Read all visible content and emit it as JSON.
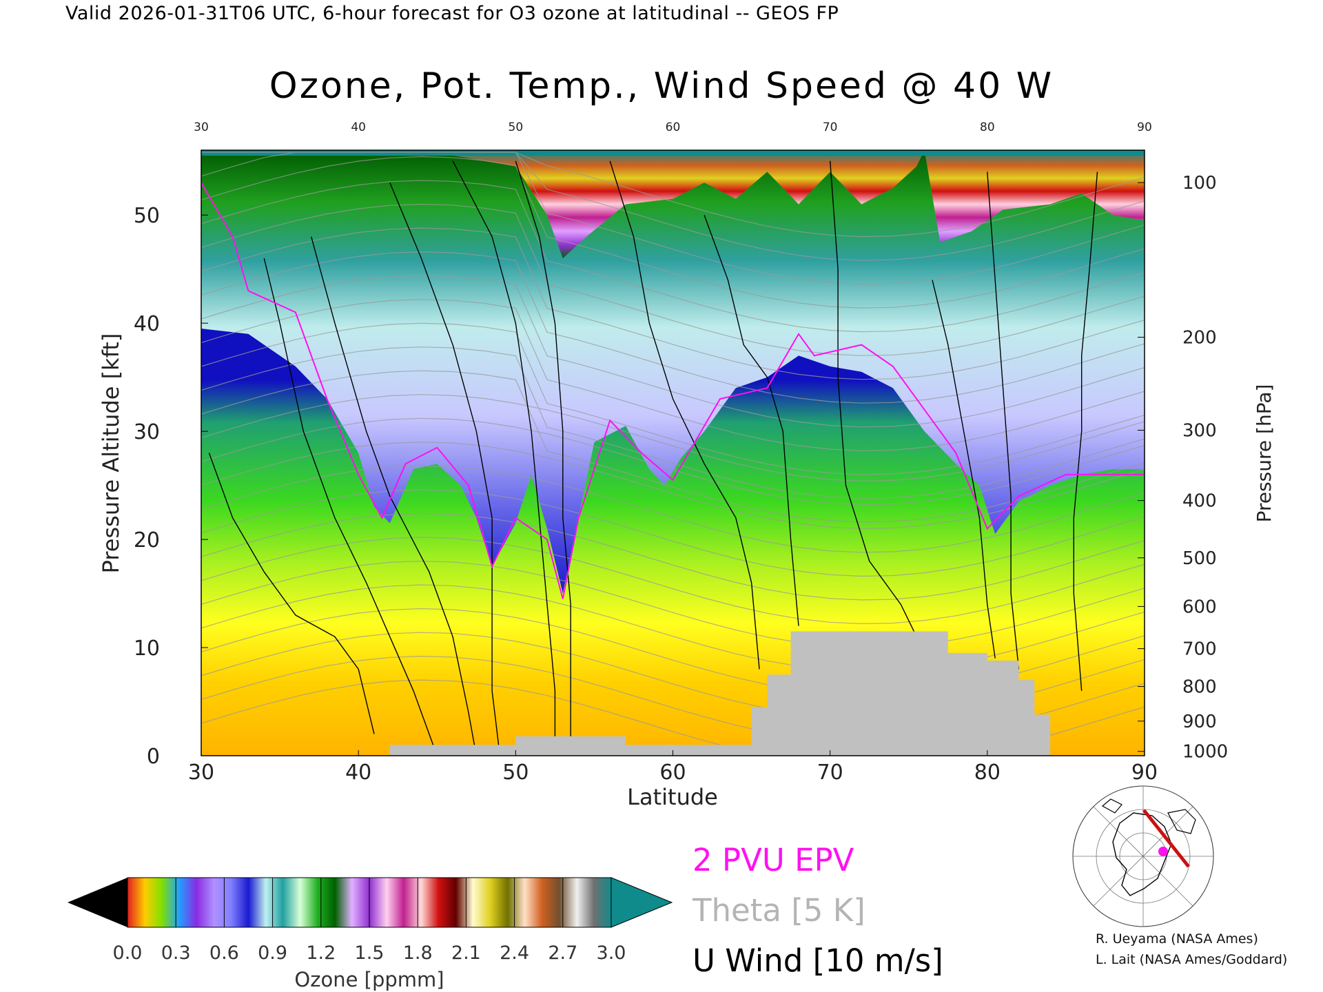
{
  "header": {
    "valid_line": "Valid 2026-01-31T06 UTC, 6-hour forecast for O3 ozone at latitudinal -- GEOS FP"
  },
  "chart_data": {
    "type": "heatmap",
    "title": "Ozone, Pot. Temp., Wind Speed @ 40 W",
    "xlabel": "Latitude",
    "ylabel": "Pressure Altitude [kft]",
    "y2label": "Pressure [hPa]",
    "xlim": [
      30,
      90
    ],
    "ylim": [
      0,
      56
    ],
    "x_ticks": [
      30,
      40,
      50,
      60,
      70,
      80,
      90
    ],
    "top_x_ticks": [
      30,
      40,
      50,
      60,
      70,
      80,
      90
    ],
    "y_ticks": [
      0,
      10,
      20,
      30,
      40,
      50
    ],
    "pressure_ticks": [
      {
        "label": "100",
        "kft": 53.0
      },
      {
        "label": "200",
        "kft": 38.7
      },
      {
        "label": "300",
        "kft": 30.1
      },
      {
        "label": "400",
        "kft": 23.6
      },
      {
        "label": "500",
        "kft": 18.3
      },
      {
        "label": "600",
        "kft": 13.8
      },
      {
        "label": "700",
        "kft": 9.9
      },
      {
        "label": "800",
        "kft": 6.4
      },
      {
        "label": "900",
        "kft": 3.2
      },
      {
        "label": "1000",
        "kft": 0.4
      }
    ],
    "tropopause_kft": [
      [
        30,
        39.5
      ],
      [
        33,
        39
      ],
      [
        36,
        36
      ],
      [
        38,
        33
      ],
      [
        40,
        28
      ],
      [
        41,
        23
      ],
      [
        42,
        21.5
      ],
      [
        43.5,
        26.5
      ],
      [
        45,
        27
      ],
      [
        46.5,
        25
      ],
      [
        47.5,
        22
      ],
      [
        48.5,
        17.5
      ],
      [
        50,
        21.5
      ],
      [
        51,
        26
      ],
      [
        52,
        21
      ],
      [
        53,
        15
      ],
      [
        54,
        22
      ],
      [
        55,
        29
      ],
      [
        57,
        30.5
      ],
      [
        58.5,
        26.5
      ],
      [
        59.5,
        25
      ],
      [
        60.5,
        27.5
      ],
      [
        62,
        30
      ],
      [
        64,
        34
      ],
      [
        66,
        35
      ],
      [
        68,
        37
      ],
      [
        70,
        36
      ],
      [
        72,
        35.5
      ],
      [
        74,
        34
      ],
      [
        76,
        30
      ],
      [
        78,
        27
      ],
      [
        79.5,
        25
      ],
      [
        80.5,
        20.5
      ],
      [
        82,
        23.5
      ],
      [
        84,
        25
      ],
      [
        86,
        26
      ],
      [
        88,
        26.5
      ],
      [
        90,
        26.5
      ]
    ],
    "upper_band_kft": [
      [
        30,
        55.5
      ],
      [
        40,
        55.5
      ],
      [
        46,
        55.5
      ],
      [
        50,
        54.5
      ],
      [
        52,
        50
      ],
      [
        53,
        46
      ],
      [
        54.5,
        48
      ],
      [
        57,
        51
      ],
      [
        60,
        51.5
      ],
      [
        62,
        53
      ],
      [
        64,
        51.5
      ],
      [
        66,
        54
      ],
      [
        68,
        51
      ],
      [
        70,
        54
      ],
      [
        72,
        51
      ],
      [
        74,
        52.5
      ],
      [
        75.5,
        54.5
      ],
      [
        76,
        56
      ],
      [
        77,
        47.5
      ],
      [
        79,
        48.5
      ],
      [
        81,
        50.5
      ],
      [
        84,
        51
      ],
      [
        86,
        52
      ],
      [
        88,
        50
      ],
      [
        90,
        49.5
      ]
    ],
    "terrain_kft": [
      [
        30,
        0
      ],
      [
        42,
        0
      ],
      [
        42,
        1
      ],
      [
        50,
        1
      ],
      [
        50,
        1.8
      ],
      [
        57,
        1.8
      ],
      [
        57,
        1
      ],
      [
        65,
        1
      ],
      [
        65,
        4.5
      ],
      [
        66,
        4.5
      ],
      [
        66,
        7.5
      ],
      [
        67.5,
        7.5
      ],
      [
        67.5,
        11.5
      ],
      [
        77.5,
        11.5
      ],
      [
        77.5,
        9.5
      ],
      [
        80,
        9.5
      ],
      [
        80,
        8.8
      ],
      [
        82,
        8.8
      ],
      [
        82,
        7
      ],
      [
        83,
        7
      ],
      [
        83,
        3.8
      ],
      [
        84,
        3.8
      ],
      [
        84,
        0
      ],
      [
        90,
        0
      ]
    ],
    "epv_2pvu_kft": [
      [
        30,
        53
      ],
      [
        32,
        48
      ],
      [
        33,
        43
      ],
      [
        36,
        41
      ],
      [
        38,
        33
      ],
      [
        40,
        26
      ],
      [
        41.5,
        22
      ],
      [
        43,
        27
      ],
      [
        45,
        28.5
      ],
      [
        47,
        25
      ],
      [
        48.5,
        17.5
      ],
      [
        50,
        22
      ],
      [
        52,
        20
      ],
      [
        53,
        14.5
      ],
      [
        54,
        22
      ],
      [
        56,
        31
      ],
      [
        58,
        28
      ],
      [
        60,
        25.5
      ],
      [
        61,
        28
      ],
      [
        63,
        33
      ],
      [
        66,
        34
      ],
      [
        68,
        39
      ],
      [
        69,
        37
      ],
      [
        72,
        38
      ],
      [
        74,
        36
      ],
      [
        76,
        32
      ],
      [
        78,
        28
      ],
      [
        80,
        21
      ],
      [
        82,
        24
      ],
      [
        85,
        26
      ],
      [
        90,
        26
      ]
    ],
    "wind_contours_kft": [
      [
        [
          30.5,
          28
        ],
        [
          32,
          22
        ],
        [
          34,
          17
        ],
        [
          36,
          13
        ],
        [
          38.5,
          11
        ],
        [
          40,
          8
        ],
        [
          41,
          2
        ]
      ],
      [
        [
          34,
          46
        ],
        [
          35,
          40
        ],
        [
          36.5,
          30
        ],
        [
          38.5,
          22
        ],
        [
          40.5,
          16
        ],
        [
          42,
          11
        ],
        [
          43.5,
          6
        ],
        [
          45,
          0
        ]
      ],
      [
        [
          37,
          48
        ],
        [
          38.5,
          40
        ],
        [
          40.5,
          30
        ],
        [
          42,
          24
        ],
        [
          44.5,
          17
        ],
        [
          46,
          11
        ],
        [
          47,
          4
        ],
        [
          47.5,
          0
        ]
      ],
      [
        [
          42,
          53
        ],
        [
          44,
          46
        ],
        [
          46,
          38
        ],
        [
          47.5,
          30
        ],
        [
          48.5,
          22
        ],
        [
          48.5,
          14
        ],
        [
          48.5,
          6
        ],
        [
          49,
          0
        ]
      ],
      [
        [
          46,
          55
        ],
        [
          48.5,
          48
        ],
        [
          50,
          40
        ],
        [
          51,
          30
        ],
        [
          51.5,
          22
        ],
        [
          52,
          14
        ],
        [
          52.5,
          6
        ],
        [
          52.5,
          0
        ]
      ],
      [
        [
          50,
          55
        ],
        [
          51.5,
          48
        ],
        [
          52.5,
          40
        ],
        [
          53,
          30
        ],
        [
          53,
          22
        ],
        [
          53.5,
          14
        ],
        [
          53.5,
          0
        ]
      ],
      [
        [
          56,
          55
        ],
        [
          57.5,
          48
        ],
        [
          58.5,
          40
        ],
        [
          60,
          33
        ],
        [
          62,
          27
        ],
        [
          64,
          22
        ],
        [
          65,
          16
        ],
        [
          65.5,
          8
        ]
      ],
      [
        [
          62,
          50
        ],
        [
          63.5,
          44
        ],
        [
          64.5,
          38
        ],
        [
          66,
          35
        ],
        [
          67,
          30
        ],
        [
          67.5,
          20
        ],
        [
          68,
          12
        ]
      ],
      [
        [
          70,
          55
        ],
        [
          70.5,
          45
        ],
        [
          70.5,
          35
        ],
        [
          71,
          25
        ],
        [
          72.5,
          18
        ],
        [
          74.5,
          14
        ],
        [
          75.5,
          11
        ]
      ],
      [
        [
          76.5,
          44
        ],
        [
          77.5,
          38
        ],
        [
          78.5,
          30
        ],
        [
          79.5,
          22
        ],
        [
          80,
          14
        ],
        [
          80.5,
          9
        ]
      ],
      [
        [
          80,
          54
        ],
        [
          80.5,
          44
        ],
        [
          81,
          34
        ],
        [
          81.5,
          24
        ],
        [
          81.5,
          15
        ],
        [
          82,
          8
        ]
      ],
      [
        [
          87,
          54
        ],
        [
          86.5,
          45
        ],
        [
          86,
          37
        ],
        [
          86,
          30
        ],
        [
          85.5,
          22
        ],
        [
          85.5,
          15
        ],
        [
          86,
          6
        ]
      ]
    ],
    "colorbar": {
      "label": "Ozone [ppmm]",
      "ticks": [
        0.0,
        0.3,
        0.6,
        0.9,
        1.2,
        1.5,
        1.8,
        2.1,
        2.4,
        2.7,
        3.0
      ],
      "tick_labels": [
        "0.0",
        "0.3",
        "0.6",
        "0.9",
        "1.2",
        "1.5",
        "1.8",
        "2.1",
        "2.4",
        "2.7",
        "3.0"
      ],
      "range": [
        0.0,
        3.0
      ],
      "low_color": "#000000",
      "high_color": "#108b8b",
      "stops": [
        "#e02020",
        "#ffcc00",
        "#80e000",
        "#20a0ff",
        "#8a2be2",
        "#b090ff",
        "#8080ff",
        "#1a1ad0",
        "#c0f0f0",
        "#20a0a0",
        "#d8ffd8",
        "#20b020",
        "#006000",
        "#e0b0ff",
        "#9030d0",
        "#ffd0f0",
        "#c02090",
        "#ffd8d8",
        "#d01010",
        "#600000",
        "#fffbd0",
        "#e0d020",
        "#707000",
        "#ffe0c8",
        "#d06020",
        "#705030",
        "#f0f0f0",
        "#707070",
        "#108b8b"
      ]
    }
  },
  "legend": {
    "epv": "2 PVU EPV",
    "theta": "Theta [5 K]",
    "wind": "U Wind [10 m/s]"
  },
  "credits": {
    "line1": "R. Ueyama (NASA Ames)",
    "line2": "L. Lait (NASA Ames/Goddard)"
  },
  "colors": {
    "epv_line": "#ff10f0",
    "theta_line": "#9a9a9a",
    "terrain": "#c0c0c0",
    "map_track": "#cc1010",
    "map_marker": "#ff10f0"
  }
}
